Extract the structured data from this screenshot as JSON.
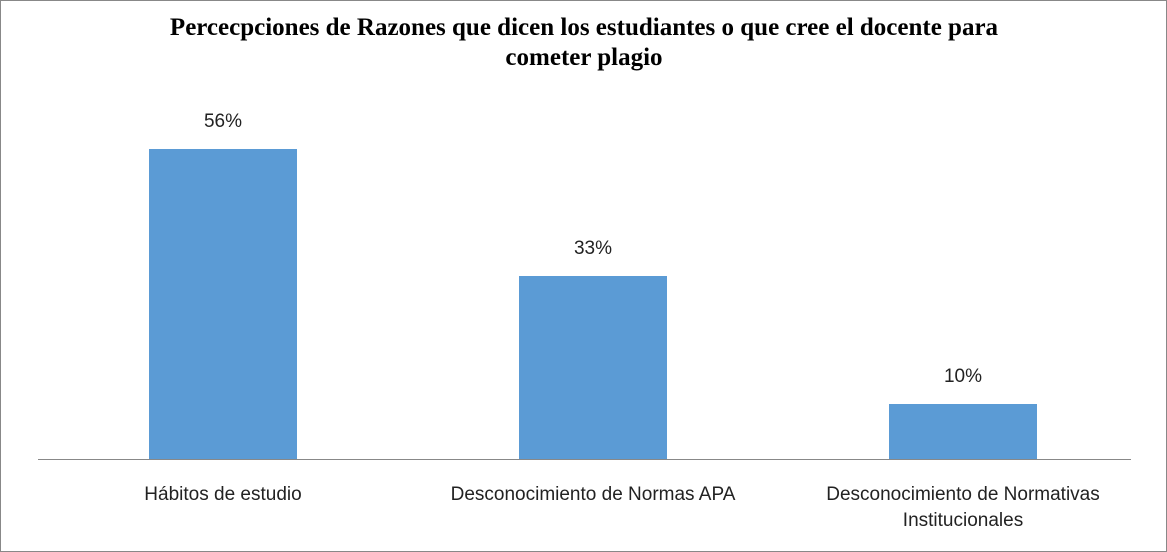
{
  "chart_data": {
    "type": "bar",
    "title": "Percecpciones de Razones que dicen los estudiantes o que cree el docente para cometer plagio",
    "categories": [
      "Hábitos de estudio",
      "Desconocimiento de Normas APA",
      "Desconocimiento de Normativas Institucionales"
    ],
    "values": [
      56,
      33,
      10
    ],
    "value_labels": [
      "56%",
      "33%",
      "10%"
    ],
    "color": "#5b9bd5"
  }
}
